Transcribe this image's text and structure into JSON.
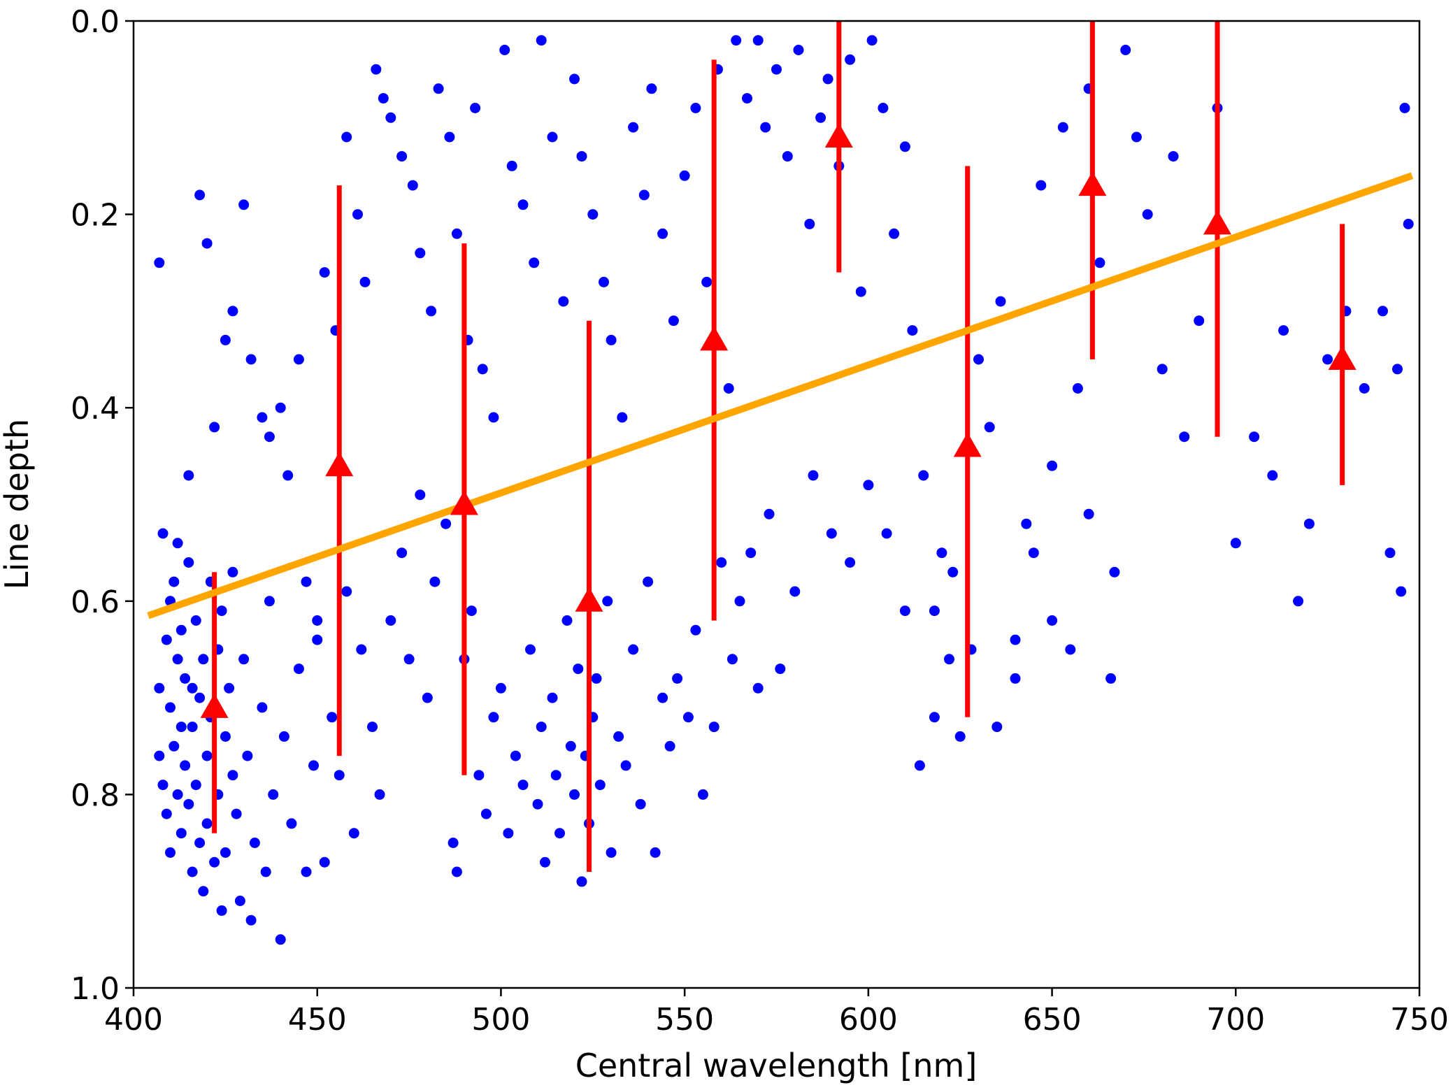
{
  "chart_data": {
    "type": "scatter",
    "title": "",
    "xlabel": "Central wavelength [nm]",
    "ylabel": "Line depth",
    "xlim": [
      400,
      750
    ],
    "ylim": [
      1.0,
      0.0
    ],
    "y_inverted": true,
    "grid": false,
    "legend": "none",
    "x_ticks": [
      "400",
      "450",
      "500",
      "550",
      "600",
      "650",
      "700",
      "750"
    ],
    "y_ticks": [
      "0.0",
      "0.2",
      "0.4",
      "0.6",
      "0.8",
      "1.0"
    ],
    "colors": {
      "points": "#0000ff",
      "binned": "#ff0000",
      "fit": "#ffa500"
    },
    "series": [
      {
        "kind": "scatter",
        "points": [
          [
            407,
            0.25
          ],
          [
            408,
            0.53
          ],
          [
            410,
            0.6
          ],
          [
            412,
            0.54
          ],
          [
            412,
            0.66
          ],
          [
            413,
            0.73
          ],
          [
            415,
            0.47
          ],
          [
            416,
            0.69
          ],
          [
            418,
            0.18
          ],
          [
            420,
            0.23
          ],
          [
            422,
            0.42
          ],
          [
            425,
            0.33
          ],
          [
            427,
            0.3
          ],
          [
            430,
            0.19
          ],
          [
            432,
            0.35
          ],
          [
            435,
            0.41
          ],
          [
            437,
            0.43
          ],
          [
            440,
            0.4
          ],
          [
            442,
            0.47
          ],
          [
            445,
            0.35
          ],
          [
            447,
            0.58
          ],
          [
            450,
            0.62
          ],
          [
            452,
            0.26
          ],
          [
            455,
            0.32
          ],
          [
            458,
            0.12
          ],
          [
            461,
            0.2
          ],
          [
            463,
            0.27
          ],
          [
            466,
            0.05
          ],
          [
            468,
            0.08
          ],
          [
            470,
            0.1
          ],
          [
            473,
            0.14
          ],
          [
            476,
            0.17
          ],
          [
            478,
            0.24
          ],
          [
            481,
            0.3
          ],
          [
            483,
            0.07
          ],
          [
            486,
            0.12
          ],
          [
            488,
            0.22
          ],
          [
            491,
            0.33
          ],
          [
            493,
            0.09
          ],
          [
            495,
            0.36
          ],
          [
            498,
            0.41
          ],
          [
            501,
            0.03
          ],
          [
            503,
            0.15
          ],
          [
            506,
            0.19
          ],
          [
            509,
            0.25
          ],
          [
            511,
            0.02
          ],
          [
            514,
            0.12
          ],
          [
            517,
            0.29
          ],
          [
            520,
            0.06
          ],
          [
            522,
            0.14
          ],
          [
            525,
            0.2
          ],
          [
            528,
            0.27
          ],
          [
            530,
            0.33
          ],
          [
            533,
            0.41
          ],
          [
            536,
            0.11
          ],
          [
            539,
            0.18
          ],
          [
            541,
            0.07
          ],
          [
            544,
            0.22
          ],
          [
            547,
            0.31
          ],
          [
            550,
            0.16
          ],
          [
            553,
            0.09
          ],
          [
            556,
            0.27
          ],
          [
            559,
            0.05
          ],
          [
            562,
            0.38
          ],
          [
            564,
            0.02
          ],
          [
            567,
            0.08
          ],
          [
            570,
            0.02
          ],
          [
            572,
            0.11
          ],
          [
            575,
            0.05
          ],
          [
            578,
            0.14
          ],
          [
            581,
            0.03
          ],
          [
            584,
            0.21
          ],
          [
            587,
            0.1
          ],
          [
            589,
            0.06
          ],
          [
            592,
            0.15
          ],
          [
            595,
            0.04
          ],
          [
            598,
            0.28
          ],
          [
            601,
            0.02
          ],
          [
            604,
            0.09
          ],
          [
            607,
            0.22
          ],
          [
            610,
            0.13
          ],
          [
            612,
            0.32
          ],
          [
            615,
            0.47
          ],
          [
            618,
            0.61
          ],
          [
            620,
            0.55
          ],
          [
            622,
            0.66
          ],
          [
            625,
            0.74
          ],
          [
            630,
            0.35
          ],
          [
            633,
            0.42
          ],
          [
            636,
            0.29
          ],
          [
            640,
            0.64
          ],
          [
            643,
            0.52
          ],
          [
            647,
            0.17
          ],
          [
            650,
            0.46
          ],
          [
            653,
            0.11
          ],
          [
            657,
            0.38
          ],
          [
            660,
            0.07
          ],
          [
            663,
            0.25
          ],
          [
            667,
            0.57
          ],
          [
            670,
            0.03
          ],
          [
            673,
            0.12
          ],
          [
            676,
            0.2
          ],
          [
            680,
            0.36
          ],
          [
            683,
            0.14
          ],
          [
            686,
            0.43
          ],
          [
            690,
            0.31
          ],
          [
            695,
            0.09
          ],
          [
            700,
            0.54
          ],
          [
            705,
            0.43
          ],
          [
            710,
            0.47
          ],
          [
            713,
            0.32
          ],
          [
            717,
            0.6
          ],
          [
            720,
            0.52
          ],
          [
            725,
            0.35
          ],
          [
            730,
            0.3
          ],
          [
            735,
            0.38
          ],
          [
            740,
            0.3
          ],
          [
            742,
            0.55
          ],
          [
            744,
            0.36
          ],
          [
            745,
            0.59
          ],
          [
            746,
            0.09
          ],
          [
            747,
            0.21
          ],
          [
            407,
            0.76
          ],
          [
            407,
            0.69
          ],
          [
            408,
            0.79
          ],
          [
            409,
            0.64
          ],
          [
            409,
            0.82
          ],
          [
            410,
            0.71
          ],
          [
            410,
            0.86
          ],
          [
            411,
            0.58
          ],
          [
            411,
            0.75
          ],
          [
            412,
            0.8
          ],
          [
            413,
            0.63
          ],
          [
            413,
            0.84
          ],
          [
            414,
            0.68
          ],
          [
            414,
            0.77
          ],
          [
            415,
            0.56
          ],
          [
            415,
            0.81
          ],
          [
            416,
            0.73
          ],
          [
            416,
            0.88
          ],
          [
            417,
            0.62
          ],
          [
            417,
            0.79
          ],
          [
            418,
            0.85
          ],
          [
            418,
            0.7
          ],
          [
            419,
            0.66
          ],
          [
            419,
            0.9
          ],
          [
            420,
            0.76
          ],
          [
            420,
            0.83
          ],
          [
            421,
            0.58
          ],
          [
            421,
            0.72
          ],
          [
            422,
            0.87
          ],
          [
            423,
            0.65
          ],
          [
            423,
            0.8
          ],
          [
            424,
            0.61
          ],
          [
            424,
            0.92
          ],
          [
            425,
            0.74
          ],
          [
            425,
            0.86
          ],
          [
            426,
            0.69
          ],
          [
            427,
            0.78
          ],
          [
            427,
            0.57
          ],
          [
            428,
            0.82
          ],
          [
            429,
            0.91
          ],
          [
            430,
            0.66
          ],
          [
            431,
            0.76
          ],
          [
            432,
            0.93
          ],
          [
            433,
            0.85
          ],
          [
            435,
            0.71
          ],
          [
            436,
            0.88
          ],
          [
            437,
            0.6
          ],
          [
            438,
            0.8
          ],
          [
            440,
            0.95
          ],
          [
            441,
            0.74
          ],
          [
            443,
            0.83
          ],
          [
            445,
            0.67
          ],
          [
            447,
            0.88
          ],
          [
            449,
            0.77
          ],
          [
            450,
            0.64
          ],
          [
            452,
            0.87
          ],
          [
            454,
            0.72
          ],
          [
            456,
            0.78
          ],
          [
            458,
            0.59
          ],
          [
            460,
            0.84
          ],
          [
            462,
            0.65
          ],
          [
            465,
            0.73
          ],
          [
            467,
            0.8
          ],
          [
            470,
            0.62
          ],
          [
            473,
            0.55
          ],
          [
            475,
            0.66
          ],
          [
            478,
            0.49
          ],
          [
            480,
            0.7
          ],
          [
            482,
            0.58
          ],
          [
            485,
            0.52
          ],
          [
            487,
            0.85
          ],
          [
            488,
            0.88
          ],
          [
            490,
            0.66
          ],
          [
            492,
            0.61
          ],
          [
            494,
            0.78
          ],
          [
            496,
            0.82
          ],
          [
            498,
            0.72
          ],
          [
            500,
            0.69
          ],
          [
            502,
            0.84
          ],
          [
            504,
            0.76
          ],
          [
            506,
            0.79
          ],
          [
            508,
            0.65
          ],
          [
            510,
            0.81
          ],
          [
            511,
            0.73
          ],
          [
            512,
            0.87
          ],
          [
            514,
            0.7
          ],
          [
            515,
            0.78
          ],
          [
            516,
            0.84
          ],
          [
            518,
            0.62
          ],
          [
            519,
            0.75
          ],
          [
            520,
            0.8
          ],
          [
            521,
            0.67
          ],
          [
            522,
            0.89
          ],
          [
            523,
            0.76
          ],
          [
            524,
            0.83
          ],
          [
            525,
            0.72
          ],
          [
            526,
            0.68
          ],
          [
            527,
            0.79
          ],
          [
            529,
            0.6
          ],
          [
            530,
            0.86
          ],
          [
            532,
            0.74
          ],
          [
            534,
            0.77
          ],
          [
            536,
            0.65
          ],
          [
            538,
            0.81
          ],
          [
            540,
            0.58
          ],
          [
            542,
            0.86
          ],
          [
            544,
            0.7
          ],
          [
            546,
            0.75
          ],
          [
            548,
            0.68
          ],
          [
            551,
            0.72
          ],
          [
            553,
            0.63
          ],
          [
            555,
            0.8
          ],
          [
            558,
            0.73
          ],
          [
            560,
            0.56
          ],
          [
            563,
            0.66
          ],
          [
            565,
            0.6
          ],
          [
            568,
            0.55
          ],
          [
            570,
            0.69
          ],
          [
            573,
            0.51
          ],
          [
            576,
            0.67
          ],
          [
            580,
            0.59
          ],
          [
            585,
            0.47
          ],
          [
            590,
            0.53
          ],
          [
            595,
            0.56
          ],
          [
            600,
            0.48
          ],
          [
            605,
            0.53
          ],
          [
            610,
            0.61
          ],
          [
            614,
            0.77
          ],
          [
            618,
            0.72
          ],
          [
            623,
            0.57
          ],
          [
            628,
            0.65
          ],
          [
            635,
            0.73
          ],
          [
            640,
            0.68
          ],
          [
            645,
            0.55
          ],
          [
            650,
            0.62
          ],
          [
            655,
            0.65
          ],
          [
            660,
            0.51
          ],
          [
            666,
            0.68
          ]
        ]
      },
      {
        "kind": "binned-median",
        "marker": "triangle",
        "points": [
          {
            "x": 422,
            "y": 0.71,
            "ylow": 0.57,
            "yhigh": 0.84
          },
          {
            "x": 456,
            "y": 0.46,
            "ylow": 0.17,
            "yhigh": 0.76
          },
          {
            "x": 490,
            "y": 0.5,
            "ylow": 0.23,
            "yhigh": 0.78
          },
          {
            "x": 524,
            "y": 0.6,
            "ylow": 0.31,
            "yhigh": 0.88
          },
          {
            "x": 558,
            "y": 0.33,
            "ylow": 0.04,
            "yhigh": 0.62
          },
          {
            "x": 592,
            "y": 0.12,
            "ylow": 0.0,
            "yhigh": 0.26
          },
          {
            "x": 627,
            "y": 0.44,
            "ylow": 0.15,
            "yhigh": 0.72
          },
          {
            "x": 661,
            "y": 0.17,
            "ylow": 0.0,
            "yhigh": 0.35
          },
          {
            "x": 695,
            "y": 0.21,
            "ylow": 0.0,
            "yhigh": 0.43
          },
          {
            "x": 729,
            "y": 0.35,
            "ylow": 0.21,
            "yhigh": 0.48
          }
        ]
      },
      {
        "kind": "linear-fit",
        "x": [
          404,
          748
        ],
        "y": [
          0.615,
          0.16
        ]
      }
    ]
  }
}
